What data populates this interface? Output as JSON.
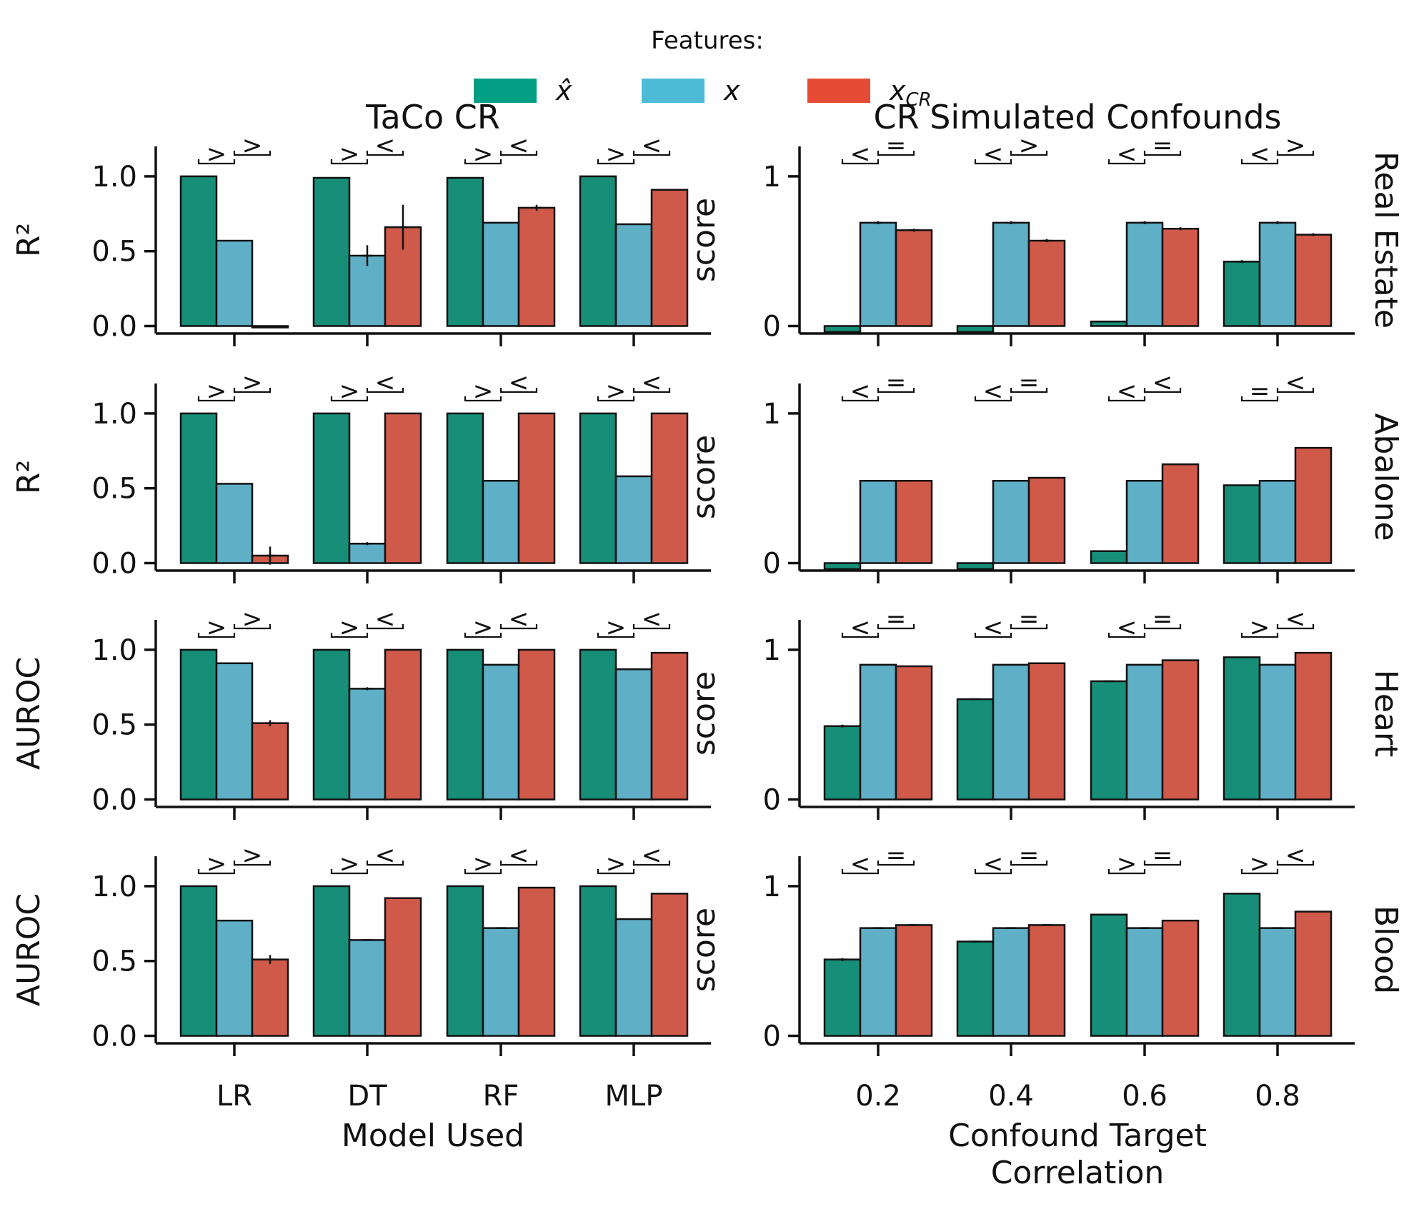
{
  "legend": {
    "title": "Features:",
    "entries": [
      {
        "label": "x̂",
        "color": "#009E82"
      },
      {
        "label": "x",
        "color": "#4DBBD5"
      },
      {
        "label": "x_CR",
        "color": "#E64B35"
      }
    ]
  },
  "bar_colors": [
    "#178E78",
    "#5FAFC6",
    "#D05A4A"
  ],
  "columns": [
    {
      "title": "TaCo CR",
      "xlabel": "Model Used",
      "categories": [
        "LR",
        "DT",
        "RF",
        "MLP"
      ]
    },
    {
      "title": "CR Simulated Confounds",
      "xlabel": "Confound Target\nCorrelation",
      "categories": [
        "0.2",
        "0.4",
        "0.6",
        "0.8"
      ]
    }
  ],
  "rows": [
    {
      "label": "Real Estate",
      "left_ylabel": "R²",
      "right_ylabel": "score"
    },
    {
      "label": "Abalone",
      "left_ylabel": "R²",
      "right_ylabel": "score"
    },
    {
      "label": "Heart",
      "left_ylabel": "AUROC",
      "right_ylabel": "score"
    },
    {
      "label": "Blood",
      "left_ylabel": "AUROC",
      "right_ylabel": "score"
    }
  ],
  "chart_data": [
    {
      "type": "bar",
      "dataset": "Real Estate",
      "panel": "TaCo CR",
      "categories": [
        "LR",
        "DT",
        "RF",
        "MLP"
      ],
      "ylabel": "R²",
      "ylim": [
        -0.05,
        1.2
      ],
      "yticks": [
        "0.0",
        "0.5",
        "1.0"
      ],
      "series": [
        {
          "name": "x̂",
          "values": [
            1.0,
            0.99,
            0.99,
            1.0
          ],
          "errors": [
            0,
            0,
            0,
            0
          ]
        },
        {
          "name": "x",
          "values": [
            0.57,
            0.47,
            0.69,
            0.68
          ],
          "errors": [
            0,
            0.07,
            0,
            0
          ]
        },
        {
          "name": "x_CR",
          "values": [
            -0.01,
            0.66,
            0.79,
            0.91
          ],
          "errors": [
            0,
            0.15,
            0.02,
            0
          ]
        }
      ],
      "significance": [
        [
          ">",
          ">"
        ],
        [
          ">",
          "<"
        ],
        [
          ">",
          "<"
        ],
        [
          ">",
          "<"
        ]
      ]
    },
    {
      "type": "bar",
      "dataset": "Real Estate",
      "panel": "CR Simulated Confounds",
      "categories": [
        "0.2",
        "0.4",
        "0.6",
        "0.8"
      ],
      "ylabel": "score",
      "ylim": [
        -0.05,
        1.2
      ],
      "yticks": [
        "0",
        "1"
      ],
      "series": [
        {
          "name": "x̂",
          "values": [
            -0.04,
            -0.04,
            0.03,
            0.43
          ],
          "errors": [
            0,
            0,
            0,
            0.01
          ]
        },
        {
          "name": "x",
          "values": [
            0.69,
            0.69,
            0.69,
            0.69
          ],
          "errors": [
            0.01,
            0.01,
            0.01,
            0.01
          ]
        },
        {
          "name": "x_CR",
          "values": [
            0.64,
            0.57,
            0.65,
            0.61
          ],
          "errors": [
            0.01,
            0.01,
            0.01,
            0.01
          ]
        }
      ],
      "significance": [
        [
          "<",
          "="
        ],
        [
          "<",
          ">"
        ],
        [
          "<",
          "="
        ],
        [
          "<",
          ">"
        ]
      ]
    },
    {
      "type": "bar",
      "dataset": "Abalone",
      "panel": "TaCo CR",
      "categories": [
        "LR",
        "DT",
        "RF",
        "MLP"
      ],
      "ylabel": "R²",
      "ylim": [
        -0.05,
        1.2
      ],
      "yticks": [
        "0.0",
        "0.5",
        "1.0"
      ],
      "series": [
        {
          "name": "x̂",
          "values": [
            1.0,
            1.0,
            1.0,
            1.0
          ],
          "errors": [
            0,
            0,
            0,
            0
          ]
        },
        {
          "name": "x",
          "values": [
            0.53,
            0.13,
            0.55,
            0.58
          ],
          "errors": [
            0,
            0.01,
            0,
            0
          ]
        },
        {
          "name": "x_CR",
          "values": [
            0.05,
            1.0,
            1.0,
            1.0
          ],
          "errors": [
            0.06,
            0,
            0,
            0
          ]
        }
      ],
      "significance": [
        [
          ">",
          ">"
        ],
        [
          ">",
          "<"
        ],
        [
          ">",
          "<"
        ],
        [
          ">",
          "<"
        ]
      ]
    },
    {
      "type": "bar",
      "dataset": "Abalone",
      "panel": "CR Simulated Confounds",
      "categories": [
        "0.2",
        "0.4",
        "0.6",
        "0.8"
      ],
      "ylabel": "score",
      "ylim": [
        -0.05,
        1.2
      ],
      "yticks": [
        "0",
        "1"
      ],
      "series": [
        {
          "name": "x̂",
          "values": [
            -0.04,
            -0.04,
            0.08,
            0.52
          ],
          "errors": [
            0,
            0,
            0,
            0
          ]
        },
        {
          "name": "x",
          "values": [
            0.55,
            0.55,
            0.55,
            0.55
          ],
          "errors": [
            0,
            0,
            0,
            0
          ]
        },
        {
          "name": "x_CR",
          "values": [
            0.55,
            0.57,
            0.66,
            0.77
          ],
          "errors": [
            0,
            0,
            0,
            0
          ]
        }
      ],
      "significance": [
        [
          "<",
          "="
        ],
        [
          "<",
          "="
        ],
        [
          "<",
          "<"
        ],
        [
          "=",
          "<"
        ]
      ]
    },
    {
      "type": "bar",
      "dataset": "Heart",
      "panel": "TaCo CR",
      "categories": [
        "LR",
        "DT",
        "RF",
        "MLP"
      ],
      "ylabel": "AUROC",
      "ylim": [
        -0.05,
        1.2
      ],
      "yticks": [
        "0.0",
        "0.5",
        "1.0"
      ],
      "series": [
        {
          "name": "x̂",
          "values": [
            1.0,
            1.0,
            1.0,
            1.0
          ],
          "errors": [
            0,
            0,
            0,
            0
          ]
        },
        {
          "name": "x",
          "values": [
            0.91,
            0.74,
            0.9,
            0.87
          ],
          "errors": [
            0,
            0.01,
            0,
            0.005
          ]
        },
        {
          "name": "x_CR",
          "values": [
            0.51,
            1.0,
            1.0,
            0.98
          ],
          "errors": [
            0.02,
            0,
            0,
            0
          ]
        }
      ],
      "significance": [
        [
          ">",
          ">"
        ],
        [
          ">",
          "<"
        ],
        [
          ">",
          "<"
        ],
        [
          ">",
          "<"
        ]
      ]
    },
    {
      "type": "bar",
      "dataset": "Heart",
      "panel": "CR Simulated Confounds",
      "categories": [
        "0.2",
        "0.4",
        "0.6",
        "0.8"
      ],
      "ylabel": "score",
      "ylim": [
        -0.05,
        1.2
      ],
      "yticks": [
        "0",
        "1"
      ],
      "series": [
        {
          "name": "x̂",
          "values": [
            0.49,
            0.67,
            0.79,
            0.95
          ],
          "errors": [
            0.01,
            0.005,
            0.005,
            0
          ]
        },
        {
          "name": "x",
          "values": [
            0.9,
            0.9,
            0.9,
            0.9
          ],
          "errors": [
            0,
            0,
            0,
            0
          ]
        },
        {
          "name": "x_CR",
          "values": [
            0.89,
            0.91,
            0.93,
            0.98
          ],
          "errors": [
            0,
            0,
            0,
            0
          ]
        }
      ],
      "significance": [
        [
          "<",
          "="
        ],
        [
          "<",
          "="
        ],
        [
          "<",
          "="
        ],
        [
          ">",
          "<"
        ]
      ]
    },
    {
      "type": "bar",
      "dataset": "Blood",
      "panel": "TaCo CR",
      "categories": [
        "LR",
        "DT",
        "RF",
        "MLP"
      ],
      "ylabel": "AUROC",
      "ylim": [
        -0.05,
        1.2
      ],
      "yticks": [
        "0.0",
        "0.5",
        "1.0"
      ],
      "series": [
        {
          "name": "x̂",
          "values": [
            1.0,
            1.0,
            1.0,
            1.0
          ],
          "errors": [
            0,
            0,
            0,
            0
          ]
        },
        {
          "name": "x",
          "values": [
            0.77,
            0.64,
            0.72,
            0.78
          ],
          "errors": [
            0,
            0.005,
            0.005,
            0
          ]
        },
        {
          "name": "x_CR",
          "values": [
            0.51,
            0.92,
            0.99,
            0.95
          ],
          "errors": [
            0.03,
            0,
            0,
            0
          ]
        }
      ],
      "significance": [
        [
          ">",
          ">"
        ],
        [
          ">",
          "<"
        ],
        [
          ">",
          "<"
        ],
        [
          ">",
          "<"
        ]
      ]
    },
    {
      "type": "bar",
      "dataset": "Blood",
      "panel": "CR Simulated Confounds",
      "categories": [
        "0.2",
        "0.4",
        "0.6",
        "0.8"
      ],
      "ylabel": "score",
      "ylim": [
        -0.05,
        1.2
      ],
      "yticks": [
        "0",
        "1"
      ],
      "series": [
        {
          "name": "x̂",
          "values": [
            0.51,
            0.63,
            0.81,
            0.95
          ],
          "errors": [
            0.01,
            0.005,
            0,
            0
          ]
        },
        {
          "name": "x",
          "values": [
            0.72,
            0.72,
            0.72,
            0.72
          ],
          "errors": [
            0.005,
            0.005,
            0.005,
            0.005
          ]
        },
        {
          "name": "x_CR",
          "values": [
            0.74,
            0.74,
            0.77,
            0.83
          ],
          "errors": [
            0.005,
            0.005,
            0,
            0
          ]
        }
      ],
      "significance": [
        [
          "<",
          "="
        ],
        [
          "<",
          "="
        ],
        [
          ">",
          "="
        ],
        [
          ">",
          "<"
        ]
      ]
    }
  ]
}
